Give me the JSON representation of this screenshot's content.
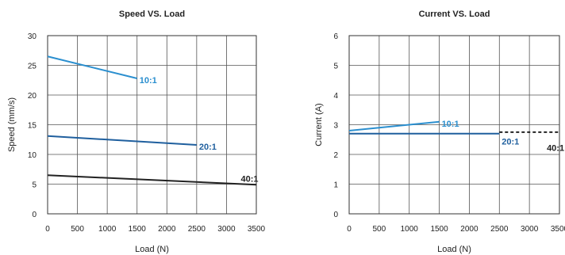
{
  "chart_data": [
    {
      "type": "line",
      "title": "Speed VS. Load",
      "xlabel": "Load (N)",
      "ylabel": "Speed (mm/s)",
      "xlim": [
        0,
        3500
      ],
      "ylim": [
        0,
        30
      ],
      "x_ticks": [
        "0",
        "500",
        "1000",
        "1500",
        "2000",
        "2500",
        "3000",
        "3500"
      ],
      "y_ticks": [
        "0",
        "5",
        "10",
        "15",
        "20",
        "25",
        "30"
      ],
      "grid": true,
      "series": [
        {
          "name": "10:1",
          "color": "#2b8fcf",
          "style": "solid",
          "points": [
            [
              0,
              26.5
            ],
            [
              1500,
              22.8
            ]
          ],
          "label_at": [
            1500,
            22.8
          ]
        },
        {
          "name": "20:1",
          "color": "#1f5f9e",
          "style": "solid",
          "points": [
            [
              0,
              13.1
            ],
            [
              2500,
              11.6
            ]
          ],
          "label_at": [
            2500,
            11.6
          ]
        },
        {
          "name": "40:1",
          "color": "#222222",
          "style": "solid",
          "points": [
            [
              0,
              6.5
            ],
            [
              3500,
              4.9
            ]
          ],
          "label_at": [
            3200,
            6.2
          ]
        }
      ]
    },
    {
      "type": "line",
      "title": "Current  VS. Load",
      "xlabel": "Load (N)",
      "ylabel": "Current (A)",
      "xlim": [
        0,
        3500
      ],
      "ylim": [
        0,
        6
      ],
      "x_ticks": [
        "0",
        "500",
        "1000",
        "1500",
        "2000",
        "2500",
        "3000",
        "3500"
      ],
      "y_ticks": [
        "0",
        "1",
        "2",
        "3",
        "4",
        "5",
        "6"
      ],
      "grid": true,
      "series": [
        {
          "name": "10:1",
          "color": "#2b8fcf",
          "style": "solid",
          "points": [
            [
              0,
              2.8
            ],
            [
              1500,
              3.1
            ]
          ],
          "label_at": [
            1500,
            3.1
          ]
        },
        {
          "name": "20:1",
          "color": "#1f5f9e",
          "style": "solid",
          "points": [
            [
              0,
              2.7
            ],
            [
              2500,
              2.7
            ]
          ],
          "label_at": [
            2500,
            2.5
          ]
        },
        {
          "name": "40:1",
          "color": "#222222",
          "style": "dashed",
          "points": [
            [
              2500,
              2.75
            ],
            [
              3500,
              2.75
            ]
          ],
          "label_at": [
            3250,
            2.5
          ]
        }
      ]
    }
  ]
}
